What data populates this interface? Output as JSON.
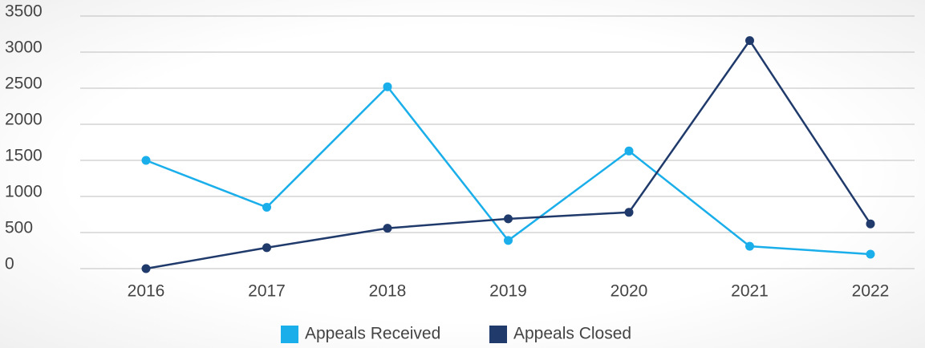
{
  "chart_data": {
    "type": "line",
    "categories": [
      "2016",
      "2017",
      "2018",
      "2019",
      "2020",
      "2021",
      "2022"
    ],
    "series": [
      {
        "name": "Appeals Received",
        "color": "#1aaeea",
        "values": [
          1500,
          850,
          2520,
          390,
          1630,
          310,
          200
        ]
      },
      {
        "name": "Appeals Closed",
        "color": "#1f3a6b",
        "values": [
          0,
          290,
          560,
          690,
          780,
          3160,
          620
        ]
      }
    ],
    "ylim": [
      0,
      3500
    ],
    "yticks": [
      0,
      500,
      1000,
      1500,
      2000,
      2500,
      3000,
      3500
    ],
    "grid": true,
    "legend": "bottom"
  }
}
